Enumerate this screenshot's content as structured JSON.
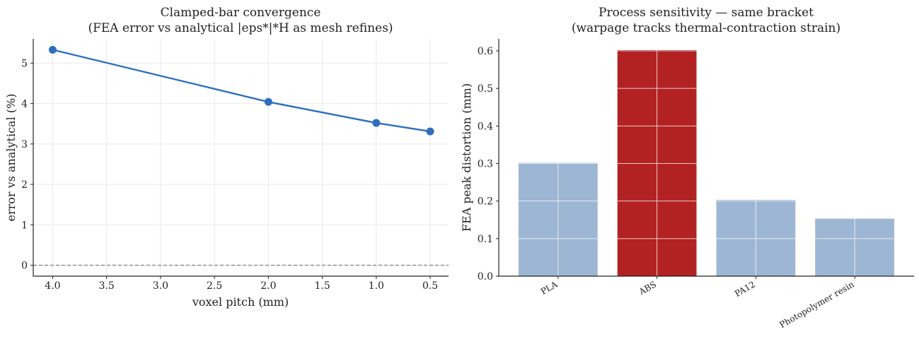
{
  "chart_data": [
    {
      "type": "line",
      "title_lines": [
        "Clamped-bar convergence",
        "(FEA error vs analytical |eps*|*H as mesh refines)"
      ],
      "xlabel": "voxel pitch (mm)",
      "ylabel": "error vs analytical (%)",
      "x_inverted": true,
      "xlim": [
        4.18,
        0.33
      ],
      "ylim": [
        -0.27,
        5.6
      ],
      "xticks": [
        4.0,
        3.5,
        3.0,
        2.5,
        2.0,
        1.5,
        1.0,
        0.5
      ],
      "xtick_labels": [
        "4.0",
        "3.5",
        "3.0",
        "2.5",
        "2.0",
        "1.5",
        "1.0",
        "0.5"
      ],
      "yticks": [
        0,
        1,
        2,
        3,
        4,
        5
      ],
      "ytick_labels": [
        "0",
        "1",
        "2",
        "3",
        "4",
        "5"
      ],
      "x": [
        4.0,
        2.0,
        1.0,
        0.5
      ],
      "y": [
        5.33,
        4.04,
        3.52,
        3.31
      ],
      "reference_line_y": 0,
      "color": "#2e6fbd",
      "grid": true
    },
    {
      "type": "bar",
      "title_lines": [
        "Process sensitivity — same bracket",
        "(warpage tracks thermal-contraction strain)"
      ],
      "xlabel": "",
      "ylabel": "FEA peak distortion (mm)",
      "categories": [
        "PLA",
        "ABS",
        "PA12",
        "Photopolymer resin"
      ],
      "values": [
        0.302,
        0.602,
        0.203,
        0.153
      ],
      "colors": [
        "#9db6d3",
        "#b22222",
        "#9db6d3",
        "#9db6d3"
      ],
      "ylim": [
        0,
        0.632
      ],
      "yticks": [
        0.0,
        0.1,
        0.2,
        0.3,
        0.4,
        0.5,
        0.6
      ],
      "ytick_labels": [
        "0.0",
        "0.1",
        "0.2",
        "0.3",
        "0.4",
        "0.5",
        "0.6"
      ],
      "grid": true
    }
  ]
}
